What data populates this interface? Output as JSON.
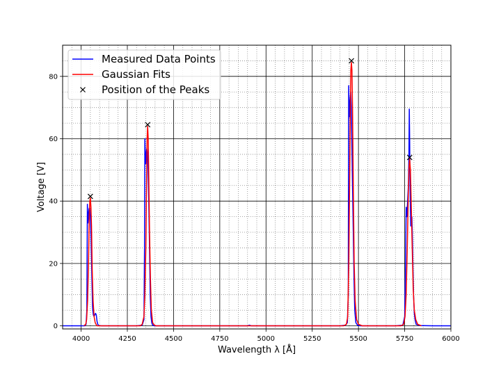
{
  "chart_data": {
    "type": "line",
    "title": "",
    "xlabel": "Wavelength λ [Å]",
    "ylabel": "Voltage [V]",
    "xlim": [
      3900,
      6000
    ],
    "ylim": [
      -1,
      90
    ],
    "xticks": [
      4000,
      4250,
      4500,
      4750,
      5000,
      5250,
      5500,
      5750,
      6000
    ],
    "yticks": [
      0,
      20,
      40,
      60,
      80
    ],
    "x_minor_step": 50,
    "y_minor_step": 5,
    "grid": "major solid black, minor dotted gray",
    "legend_position": "top-left",
    "series": [
      {
        "name": "Measured Data Points",
        "color": "#0000ff",
        "x": [
          3900,
          4020,
          4027,
          4031,
          4034,
          4037,
          4040,
          4043,
          4046,
          4050,
          4054,
          4058,
          4062,
          4066,
          4070,
          4074,
          4078,
          4082,
          4086,
          4090,
          4094,
          4098,
          4110,
          4200,
          4300,
          4330,
          4340,
          4343,
          4345,
          4347,
          4350,
          4353,
          4356,
          4359,
          4362,
          4366,
          4370,
          4374,
          4378,
          4382,
          4386,
          4395,
          4500,
          4750,
          4900,
          4910,
          4920,
          5000,
          5250,
          5400,
          5430,
          5440,
          5445,
          5447,
          5449,
          5451,
          5454,
          5458,
          5461,
          5464,
          5468,
          5472,
          5476,
          5480,
          5486,
          5495,
          5510,
          5600,
          5700,
          5740,
          5750,
          5755,
          5758,
          5762,
          5766,
          5770,
          5773,
          5775,
          5777,
          5779,
          5781,
          5783,
          5786,
          5789,
          5792,
          5795,
          5798,
          5802,
          5806,
          5812,
          5830,
          5900,
          6000
        ],
        "y": [
          0,
          0,
          0.5,
          5,
          39,
          33,
          36,
          37.5,
          38,
          35,
          28,
          16,
          6,
          3.5,
          3,
          3.5,
          4,
          3.5,
          1.5,
          0.5,
          0.2,
          0.1,
          0,
          0,
          0,
          0.2,
          2,
          25,
          60,
          55,
          52,
          56,
          57,
          55,
          50,
          40,
          25,
          10,
          3,
          1,
          0.3,
          0,
          0,
          0,
          0,
          0.2,
          0,
          0,
          0,
          0,
          0.2,
          1,
          10,
          77,
          70,
          67,
          72,
          75,
          70,
          60,
          45,
          30,
          15,
          5,
          1,
          0.2,
          0,
          0,
          0,
          0.2,
          3,
          20,
          38,
          35,
          40,
          45,
          55,
          69.5,
          60,
          45,
          38,
          32,
          34,
          35,
          28,
          18,
          10,
          4,
          2,
          0.5,
          0.1,
          0,
          0
        ]
      },
      {
        "name": "Gaussian Fits",
        "color": "#ff0000",
        "x": [
          4015,
          4025,
          4030,
          4035,
          4040,
          4044,
          4047,
          4050,
          4053,
          4056,
          4060,
          4065,
          4070,
          4076,
          4085,
          4320,
          4330,
          4340,
          4345,
          4350,
          4354,
          4357,
          4360,
          4363,
          4366,
          4370,
          4375,
          4380,
          4387,
          4395,
          4405,
          5420,
          5435,
          5442,
          5448,
          5452,
          5456,
          5459,
          5462,
          5465,
          5468,
          5472,
          5477,
          5482,
          5490,
          5500,
          5520,
          5730,
          5745,
          5752,
          5758,
          5764,
          5769,
          5773,
          5777,
          5781,
          5785,
          5790,
          5796,
          5802,
          5810,
          5820,
          5840
        ],
        "y": [
          0,
          0.5,
          2,
          8,
          20,
          35,
          40,
          41,
          38,
          32,
          18,
          8,
          3,
          1,
          0,
          0,
          0.5,
          3,
          10,
          25,
          45,
          60,
          64,
          60,
          48,
          30,
          15,
          5,
          1,
          0.3,
          0,
          0,
          0.5,
          3,
          20,
          45,
          70,
          82,
          84.5,
          82,
          70,
          45,
          20,
          8,
          2,
          0.5,
          0,
          0,
          0.5,
          3,
          10,
          25,
          40,
          50,
          53.5,
          50,
          40,
          27,
          12,
          5,
          2,
          0.5,
          0
        ]
      },
      {
        "name": "Position of the Peaks",
        "color": "#000000",
        "marker": "x",
        "x": [
          4050,
          4360,
          5462,
          5777
        ],
        "y": [
          41.5,
          64.5,
          85,
          54
        ]
      }
    ]
  }
}
